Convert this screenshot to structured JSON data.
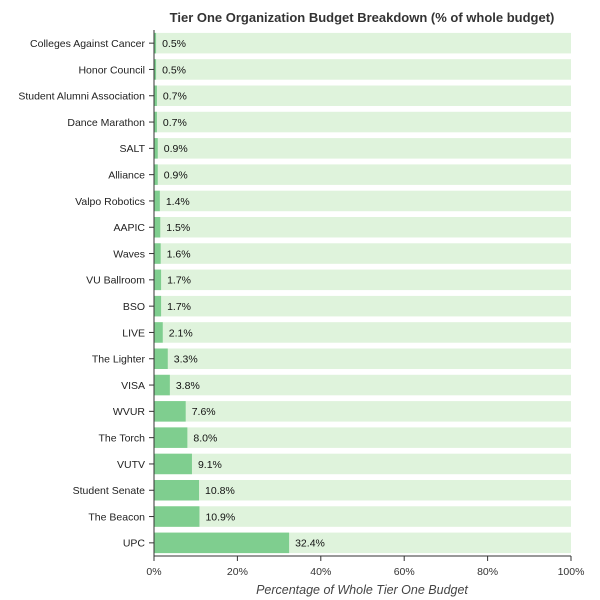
{
  "chart_data": {
    "type": "bar",
    "orientation": "horizontal",
    "title": "Tier One Organization Budget Breakdown (% of whole budget)",
    "xlabel": "Percentage of Whole Tier One Budget",
    "ylabel": "",
    "xlim": [
      0,
      100
    ],
    "xticks": [
      {
        "value": 0,
        "label": "0%"
      },
      {
        "value": 20,
        "label": "20%"
      },
      {
        "value": 40,
        "label": "40%"
      },
      {
        "value": 60,
        "label": "60%"
      },
      {
        "value": 80,
        "label": "80%"
      },
      {
        "value": 100,
        "label": "100%"
      }
    ],
    "categories": [
      "Colleges Against Cancer",
      "Honor Council",
      "Student Alumni Association",
      "Dance Marathon",
      "SALT",
      "Alliance",
      "Valpo Robotics",
      "AAPIC",
      "Waves",
      "VU Ballroom",
      "BSO",
      "LIVE",
      "The Lighter",
      "VISA",
      "WVUR",
      "The Torch",
      "VUTV",
      "Student Senate",
      "The Beacon",
      "UPC"
    ],
    "values": [
      0.5,
      0.5,
      0.7,
      0.7,
      0.9,
      0.9,
      1.4,
      1.5,
      1.6,
      1.7,
      1.7,
      2.1,
      3.3,
      3.8,
      7.6,
      8.0,
      9.1,
      10.8,
      10.9,
      32.4
    ],
    "data_labels": [
      "0.5%",
      "0.5%",
      "0.7%",
      "0.7%",
      "0.9%",
      "0.9%",
      "1.4%",
      "1.5%",
      "1.6%",
      "1.7%",
      "1.7%",
      "2.1%",
      "3.3%",
      "3.8%",
      "7.6%",
      "8.0%",
      "9.1%",
      "10.8%",
      "10.9%",
      "32.4%"
    ],
    "grid": false,
    "colors": {
      "bar": "#7fce8f",
      "background_bar": "#dff3dc",
      "axis": "#333333"
    }
  }
}
